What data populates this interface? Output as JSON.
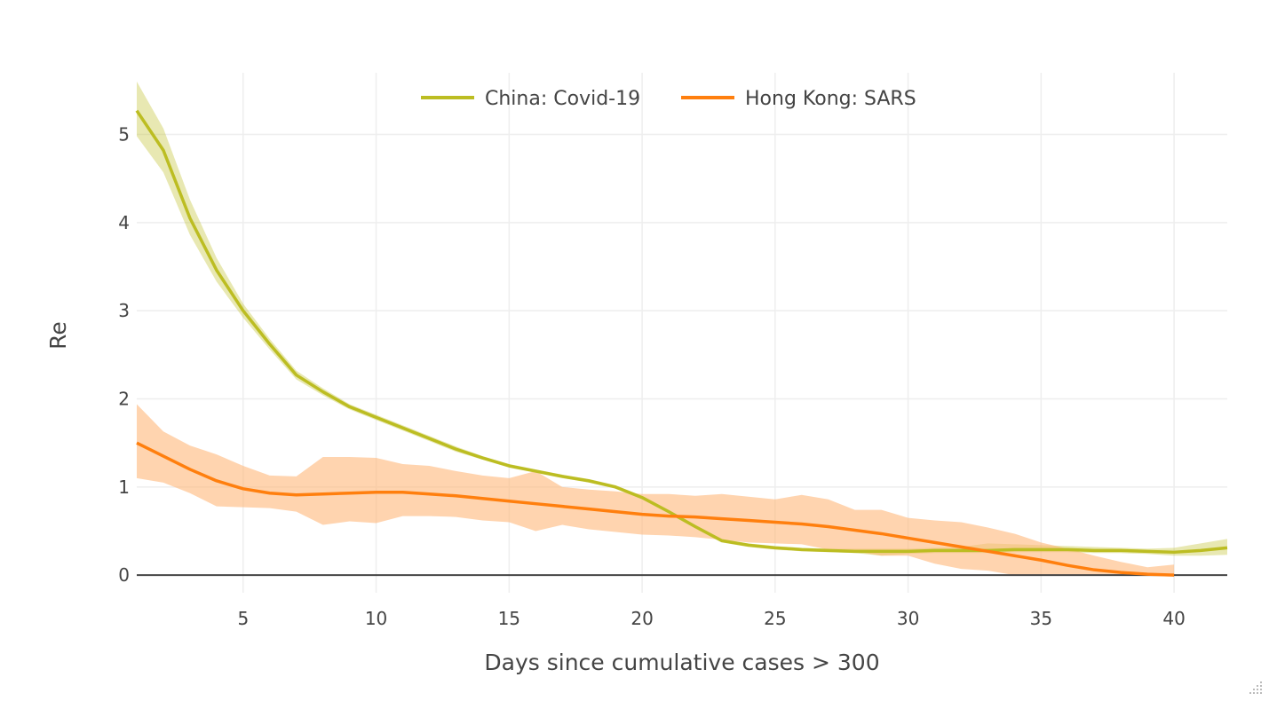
{
  "chart_data": {
    "type": "line",
    "xlabel": "Days since cumulative cases > 300",
    "ylabel": "Re",
    "xlim": [
      1,
      42
    ],
    "ylim": [
      -0.2,
      5.7
    ],
    "xticks": [
      5,
      10,
      15,
      20,
      25,
      30,
      35,
      40
    ],
    "yticks": [
      0,
      1,
      2,
      3,
      4,
      5
    ],
    "grid": true,
    "legend_position": "top-center",
    "series": [
      {
        "name": "China: Covid-19",
        "color": "#bcbd22",
        "band_color": "#bcbd22",
        "x": [
          1,
          2,
          3,
          4,
          5,
          6,
          7,
          8,
          9,
          10,
          11,
          12,
          13,
          14,
          15,
          16,
          17,
          18,
          19,
          20,
          21,
          22,
          23,
          24,
          25,
          26,
          27,
          28,
          29,
          30,
          31,
          32,
          33,
          34,
          35,
          36,
          37,
          38,
          39,
          40,
          41,
          42
        ],
        "y": [
          5.27,
          4.82,
          4.05,
          3.46,
          3.0,
          2.62,
          2.27,
          2.08,
          1.91,
          1.79,
          1.67,
          1.55,
          1.43,
          1.33,
          1.24,
          1.18,
          1.12,
          1.07,
          1.0,
          0.88,
          0.72,
          0.55,
          0.39,
          0.34,
          0.31,
          0.29,
          0.28,
          0.27,
          0.27,
          0.27,
          0.28,
          0.28,
          0.28,
          0.29,
          0.29,
          0.29,
          0.28,
          0.28,
          0.27,
          0.26,
          0.28,
          0.31
        ],
        "lower": [
          4.98,
          4.57,
          3.86,
          3.33,
          2.92,
          2.56,
          2.22,
          2.04,
          1.88,
          1.76,
          1.64,
          1.52,
          1.4,
          1.31,
          1.22,
          1.16,
          1.1,
          1.05,
          0.98,
          0.86,
          0.7,
          0.53,
          0.37,
          0.32,
          0.29,
          0.27,
          0.26,
          0.25,
          0.22,
          0.24,
          0.25,
          0.25,
          0.25,
          0.26,
          0.26,
          0.26,
          0.25,
          0.25,
          0.24,
          0.22,
          0.22,
          0.23
        ],
        "upper": [
          5.6,
          5.07,
          4.26,
          3.6,
          3.08,
          2.68,
          2.32,
          2.12,
          1.94,
          1.82,
          1.7,
          1.58,
          1.46,
          1.35,
          1.26,
          1.2,
          1.14,
          1.09,
          1.02,
          0.9,
          0.74,
          0.57,
          0.41,
          0.36,
          0.33,
          0.31,
          0.3,
          0.3,
          0.3,
          0.3,
          0.31,
          0.32,
          0.36,
          0.35,
          0.34,
          0.33,
          0.32,
          0.31,
          0.3,
          0.31,
          0.36,
          0.41
        ]
      },
      {
        "name": "Hong Kong: SARS",
        "color": "#ff7f0e",
        "band_color": "#ffb77a",
        "x": [
          1,
          2,
          3,
          4,
          5,
          6,
          7,
          8,
          9,
          10,
          11,
          12,
          13,
          14,
          15,
          16,
          17,
          18,
          19,
          20,
          21,
          22,
          23,
          24,
          25,
          26,
          27,
          28,
          29,
          30,
          31,
          32,
          33,
          34,
          35,
          36,
          37,
          38,
          39,
          40
        ],
        "y": [
          1.5,
          1.35,
          1.2,
          1.07,
          0.98,
          0.93,
          0.91,
          0.92,
          0.93,
          0.94,
          0.94,
          0.92,
          0.9,
          0.87,
          0.84,
          0.81,
          0.78,
          0.75,
          0.72,
          0.69,
          0.67,
          0.66,
          0.64,
          0.62,
          0.6,
          0.58,
          0.55,
          0.51,
          0.47,
          0.42,
          0.37,
          0.32,
          0.27,
          0.22,
          0.17,
          0.11,
          0.06,
          0.03,
          0.01,
          0.0
        ],
        "lower": [
          1.1,
          1.05,
          0.93,
          0.78,
          0.77,
          0.76,
          0.72,
          0.57,
          0.61,
          0.59,
          0.67,
          0.67,
          0.66,
          0.62,
          0.6,
          0.5,
          0.57,
          0.52,
          0.49,
          0.46,
          0.45,
          0.43,
          0.4,
          0.37,
          0.36,
          0.35,
          0.29,
          0.27,
          0.22,
          0.22,
          0.13,
          0.07,
          0.05,
          0.0,
          0.0,
          0.0,
          0.0,
          0.0,
          0.0,
          0.0
        ],
        "upper": [
          1.94,
          1.63,
          1.47,
          1.37,
          1.24,
          1.13,
          1.12,
          1.34,
          1.34,
          1.33,
          1.26,
          1.24,
          1.18,
          1.13,
          1.1,
          1.18,
          1.0,
          0.97,
          0.95,
          0.92,
          0.92,
          0.9,
          0.92,
          0.89,
          0.86,
          0.91,
          0.86,
          0.74,
          0.74,
          0.65,
          0.62,
          0.6,
          0.54,
          0.47,
          0.37,
          0.3,
          0.22,
          0.15,
          0.09,
          0.12
        ]
      }
    ]
  }
}
